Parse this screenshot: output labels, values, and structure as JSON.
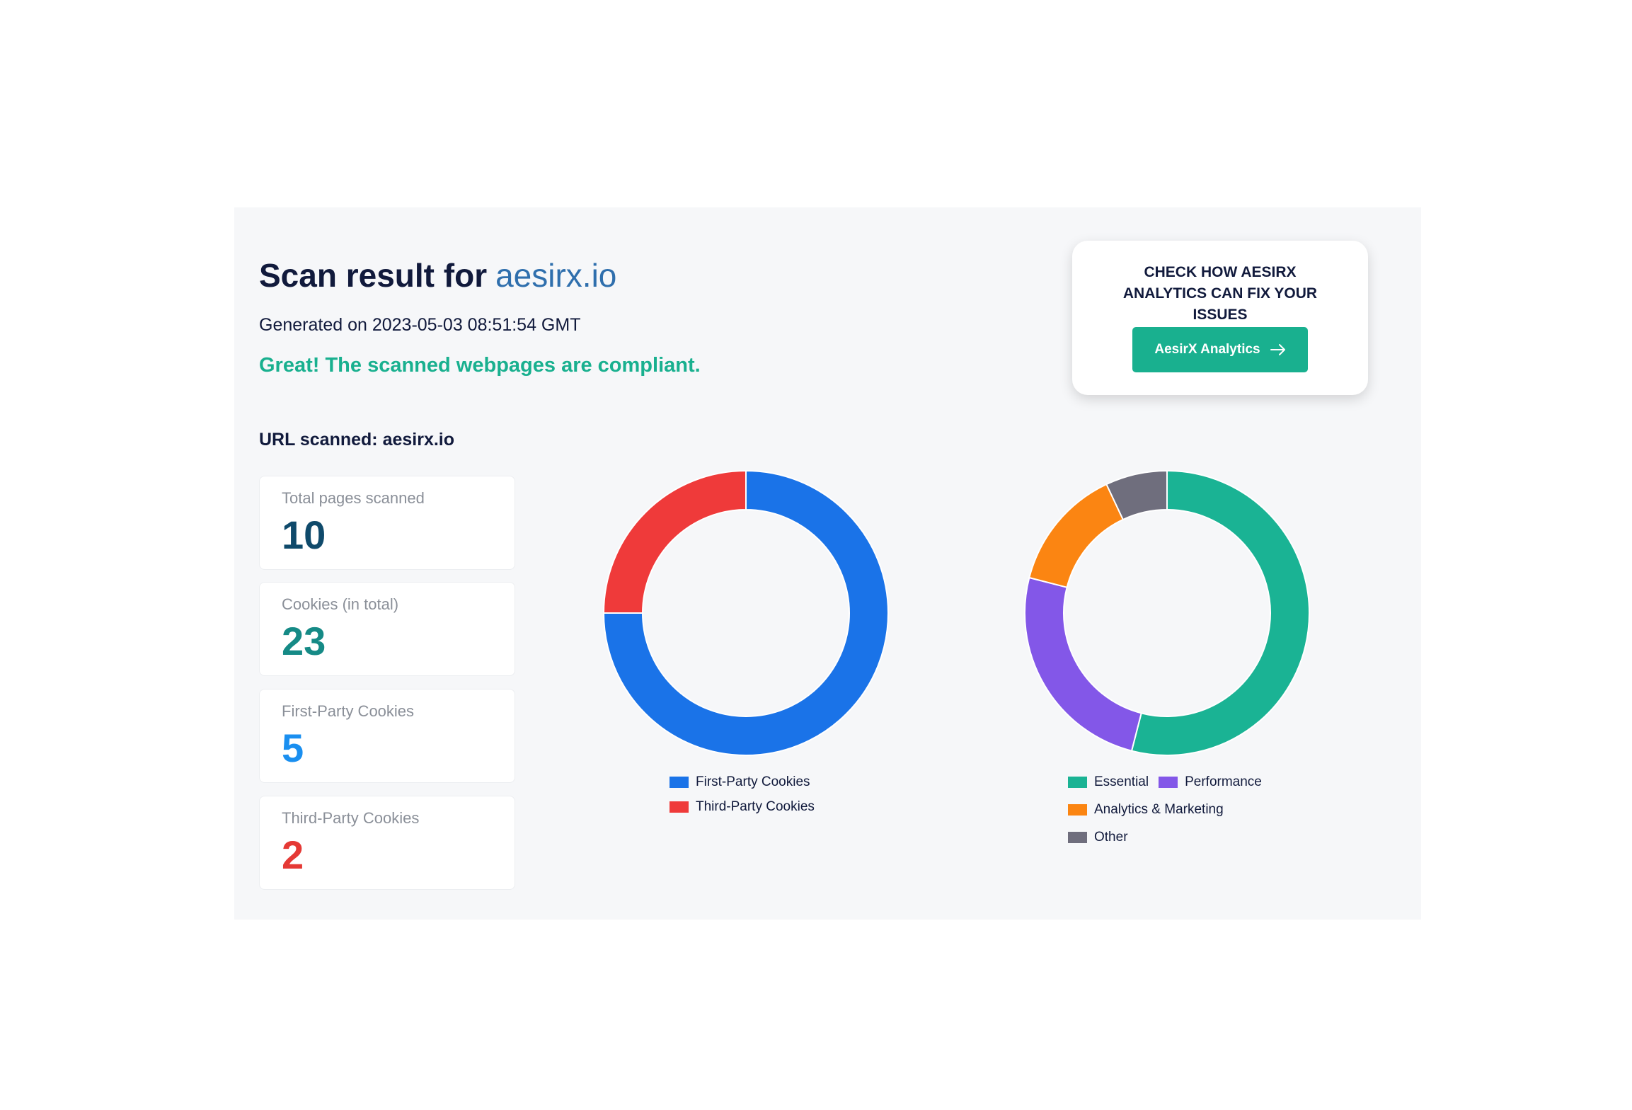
{
  "header": {
    "title": "Scan result for",
    "domain": "aesirx.io",
    "generated": "Generated on 2023-05-03 08:51:54 GMT",
    "status": "Great! The scanned webpages are compliant."
  },
  "cta": {
    "heading": "CHECK HOW AESIRX ANALYTICS CAN FIX YOUR ISSUES",
    "button": "AesirX Analytics"
  },
  "url_scanned": "URL scanned: aesirx.io",
  "stats": [
    {
      "label": "Total pages scanned",
      "value": 10,
      "color": "#0f4a6b"
    },
    {
      "label": "Cookies (in total)",
      "value": 23,
      "color": "#158a86"
    },
    {
      "label": "First-Party Cookies",
      "value": 5,
      "color": "#1a8ff0"
    },
    {
      "label": "Third-Party Cookies",
      "value": 2,
      "color": "#e53935"
    }
  ],
  "chart_data": [
    {
      "type": "donut",
      "categories": [
        "First-Party Cookies",
        "Third-Party Cookies"
      ],
      "values": [
        75,
        25
      ],
      "colors": [
        "#1a73e8",
        "#ef3a3a"
      ]
    },
    {
      "type": "donut",
      "categories": [
        "Essential",
        "Performance",
        "Analytics & Marketing",
        "Other"
      ],
      "values": [
        54,
        25,
        14,
        7
      ],
      "colors": [
        "#1ab394",
        "#8357e8",
        "#fb8512",
        "#6f6e7d"
      ]
    }
  ]
}
